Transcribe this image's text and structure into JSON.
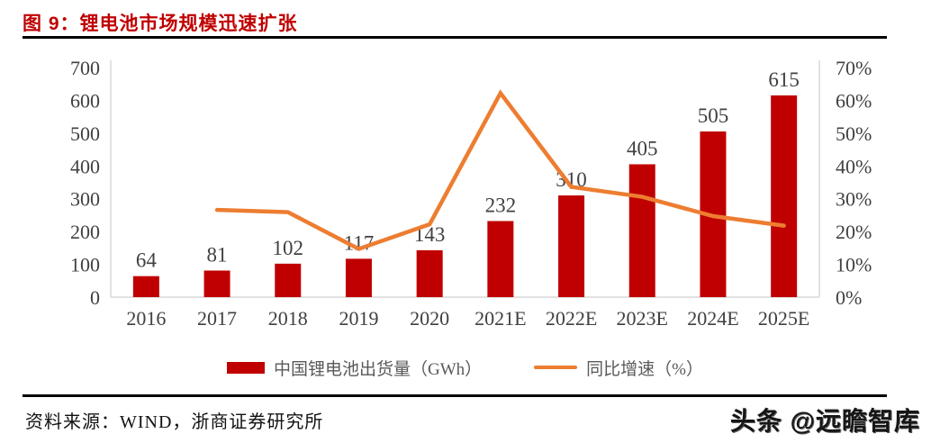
{
  "figure": {
    "title": "图 9：锂电池市场规模迅速扩张",
    "source_label": "资料来源：WIND，浙商证券研究所",
    "watermark": "头条 @远瞻智库"
  },
  "legend": {
    "bar_label": "中国锂电池出货量（GWh）",
    "line_label": "同比增速（%）"
  },
  "theme": {
    "title_color": "#C00000",
    "bar_color": "#C00000",
    "line_color": "#ED7D31",
    "axis_line_color": "#D9D9D9",
    "tick_text_color": "#404040",
    "legend_text_color": "#595959",
    "divider_color": "#000000"
  },
  "chart_data": {
    "type": "bar",
    "title": "锂电池市场规模迅速扩张",
    "categories": [
      "2016",
      "2017",
      "2018",
      "2019",
      "2020",
      "2021E",
      "2022E",
      "2023E",
      "2024E",
      "2025E"
    ],
    "series": [
      {
        "name": "中国锂电池出货量（GWh）",
        "type": "bar",
        "axis": "left",
        "color": "#C00000",
        "values": [
          64,
          81,
          102,
          117,
          143,
          232,
          310,
          405,
          505,
          615
        ],
        "labels": [
          "64",
          "81",
          "102",
          "117",
          "143",
          "232",
          "310",
          "405",
          "505",
          "615"
        ]
      },
      {
        "name": "同比增速（%）",
        "type": "line",
        "axis": "right",
        "color": "#ED7D31",
        "values": [
          null,
          26.6,
          25.9,
          14.7,
          22.2,
          62.2,
          33.6,
          30.6,
          24.7,
          21.8
        ]
      }
    ],
    "left_axis": {
      "min": 0,
      "max": 700,
      "step": 100,
      "ticks": [
        "0",
        "100",
        "200",
        "300",
        "400",
        "500",
        "600",
        "700"
      ]
    },
    "right_axis": {
      "min": 0,
      "max": 70,
      "step": 10,
      "ticks": [
        "0%",
        "10%",
        "20%",
        "30%",
        "40%",
        "50%",
        "60%",
        "70%"
      ]
    },
    "grid": false,
    "legend_position": "bottom"
  }
}
